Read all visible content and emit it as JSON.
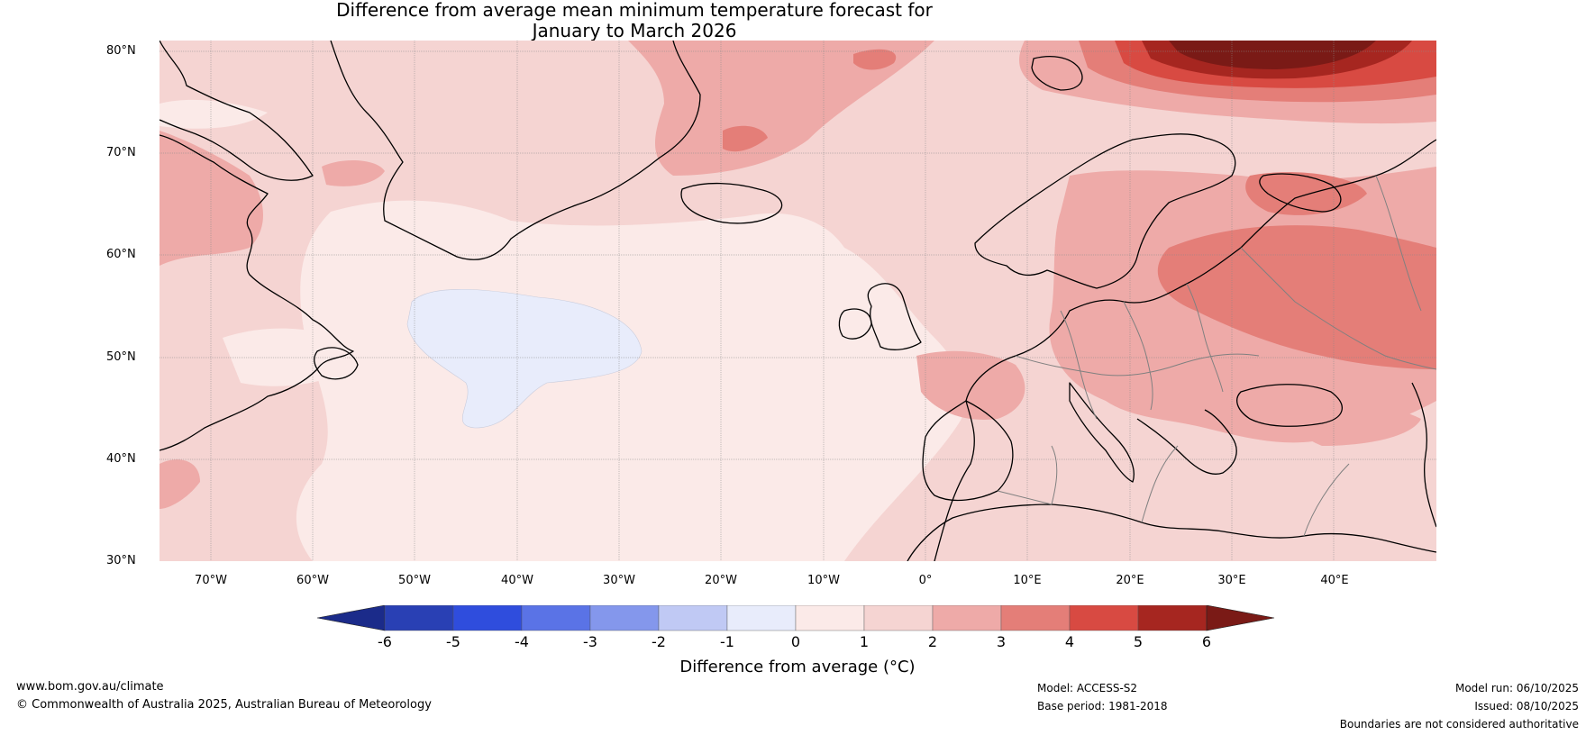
{
  "title": {
    "line1": "Difference from average mean minimum temperature forecast for",
    "line2": "January to March 2026"
  },
  "map": {
    "lat_labels": [
      "80°N",
      "70°N",
      "60°N",
      "50°N",
      "40°N",
      "30°N"
    ],
    "lon_labels": [
      "70°W",
      "60°W",
      "50°W",
      "40°W",
      "30°W",
      "20°W",
      "10°W",
      "0°",
      "10°E",
      "20°E",
      "30°E",
      "40°E"
    ],
    "anomaly_colors": {
      "n1_0": "#e8ecfb",
      "p0_1": "#fbeae8",
      "p1_2": "#f5d4d2",
      "p2_3": "#eeaaa8",
      "p3_4": "#e47e78",
      "p4_5": "#d84a42",
      "p5_6": "#a62620",
      "p6": "#7a1a16"
    },
    "land_outline_color": "#000000",
    "border_color": "#808080"
  },
  "colorbar": {
    "title": "Difference from average (°C)",
    "ticks": [
      "-6",
      "-5",
      "-4",
      "-3",
      "-2",
      "-1",
      "0",
      "1",
      "2",
      "3",
      "4",
      "5",
      "6"
    ],
    "colors": [
      "#1b2b8a",
      "#2940b4",
      "#2f4ddd",
      "#5a73e6",
      "#8497ec",
      "#c0c9f4",
      "#e8ecfb",
      "#fbeae8",
      "#f5d4d2",
      "#eeaaa8",
      "#e47e78",
      "#d84a42",
      "#a62620",
      "#7a1a16"
    ]
  },
  "footer": {
    "website": "www.bom.gov.au/climate",
    "copyright": "© Commonwealth of Australia 2025, Australian Bureau of Meteorology",
    "model": "Model: ACCESS-S2",
    "base_period": "Base period: 1981-2018",
    "model_run": "Model run: 06/10/2025",
    "issued": "Issued: 08/10/2025",
    "disclaimer": "Boundaries are not considered authoritative"
  }
}
